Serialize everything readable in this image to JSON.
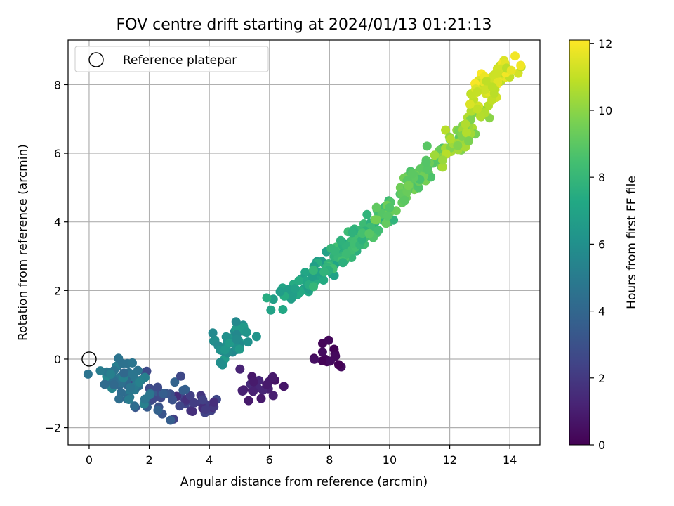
{
  "chart_data": {
    "type": "scatter",
    "title": "FOV centre drift starting at 2024/01/13 01:21:13",
    "xlabel": "Angular distance from reference (arcmin)",
    "ylabel": "Rotation from reference (arcmin)",
    "xlim": [
      -0.7,
      15
    ],
    "ylim": [
      -2.5,
      9.3
    ],
    "xticks": [
      0,
      2,
      4,
      6,
      8,
      10,
      12,
      14
    ],
    "yticks": [
      -2,
      0,
      2,
      4,
      6,
      8
    ],
    "xtick_labels": [
      "0",
      "2",
      "4",
      "6",
      "8",
      "10",
      "12",
      "14"
    ],
    "ytick_labels": [
      "−2",
      "0",
      "2",
      "4",
      "6",
      "8"
    ],
    "grid": true,
    "legend": {
      "position": "top-left",
      "entries": [
        "Reference platepar"
      ]
    },
    "reference_point": {
      "x": 0,
      "y": 0
    },
    "colorbar": {
      "label": "Hours from first FF file",
      "range": [
        0,
        12.1
      ],
      "ticks": [
        0,
        2,
        4,
        6,
        8,
        10,
        12
      ],
      "tick_labels": [
        "0",
        "2",
        "4",
        "6",
        "8",
        "10",
        "12"
      ],
      "colormap": "viridis"
    },
    "clusters": [
      {
        "hours": [
          0.0,
          0.6
        ],
        "count": 14,
        "center": [
          8.0,
          0.1
        ],
        "spread": [
          0.35,
          0.3
        ],
        "slope": 0
      },
      {
        "hours": [
          0.6,
          1.5
        ],
        "count": 22,
        "center": [
          5.6,
          -0.8
        ],
        "spread": [
          0.55,
          0.28
        ],
        "slope": 0
      },
      {
        "hours": [
          1.5,
          2.6
        ],
        "count": 26,
        "center": [
          3.6,
          -1.3
        ],
        "spread": [
          0.7,
          0.3
        ],
        "slope": 0
      },
      {
        "hours": [
          2.6,
          4.0
        ],
        "count": 30,
        "center": [
          2.4,
          -1.1
        ],
        "spread": [
          0.6,
          0.45
        ],
        "slope": 0
      },
      {
        "hours": [
          4.0,
          5.6
        ],
        "count": 55,
        "center": [
          1.1,
          -0.7
        ],
        "spread": [
          0.6,
          0.45
        ],
        "slope": 0
      },
      {
        "hours": [
          5.6,
          6.6
        ],
        "count": 40,
        "center": [
          4.9,
          0.6
        ],
        "spread": [
          0.6,
          0.45
        ],
        "slope": 0.3
      },
      {
        "hours": [
          6.6,
          7.6
        ],
        "count": 60,
        "center": [
          7.2,
          2.3
        ],
        "spread": [
          0.9,
          0.3
        ],
        "slope": 0.6
      },
      {
        "hours": [
          7.6,
          8.6
        ],
        "count": 90,
        "center": [
          9.0,
          3.6
        ],
        "spread": [
          0.9,
          0.28
        ],
        "slope": 0.78
      },
      {
        "hours": [
          8.6,
          9.6
        ],
        "count": 80,
        "center": [
          10.8,
          5.2
        ],
        "spread": [
          0.9,
          0.28
        ],
        "slope": 0.9
      },
      {
        "hours": [
          9.6,
          10.8
        ],
        "count": 55,
        "center": [
          12.4,
          6.5
        ],
        "spread": [
          0.5,
          0.35
        ],
        "slope": 1.0
      },
      {
        "hours": [
          10.8,
          12.1
        ],
        "count": 75,
        "center": [
          13.4,
          8.1
        ],
        "spread": [
          0.55,
          0.35
        ],
        "slope": 0.6
      }
    ]
  }
}
